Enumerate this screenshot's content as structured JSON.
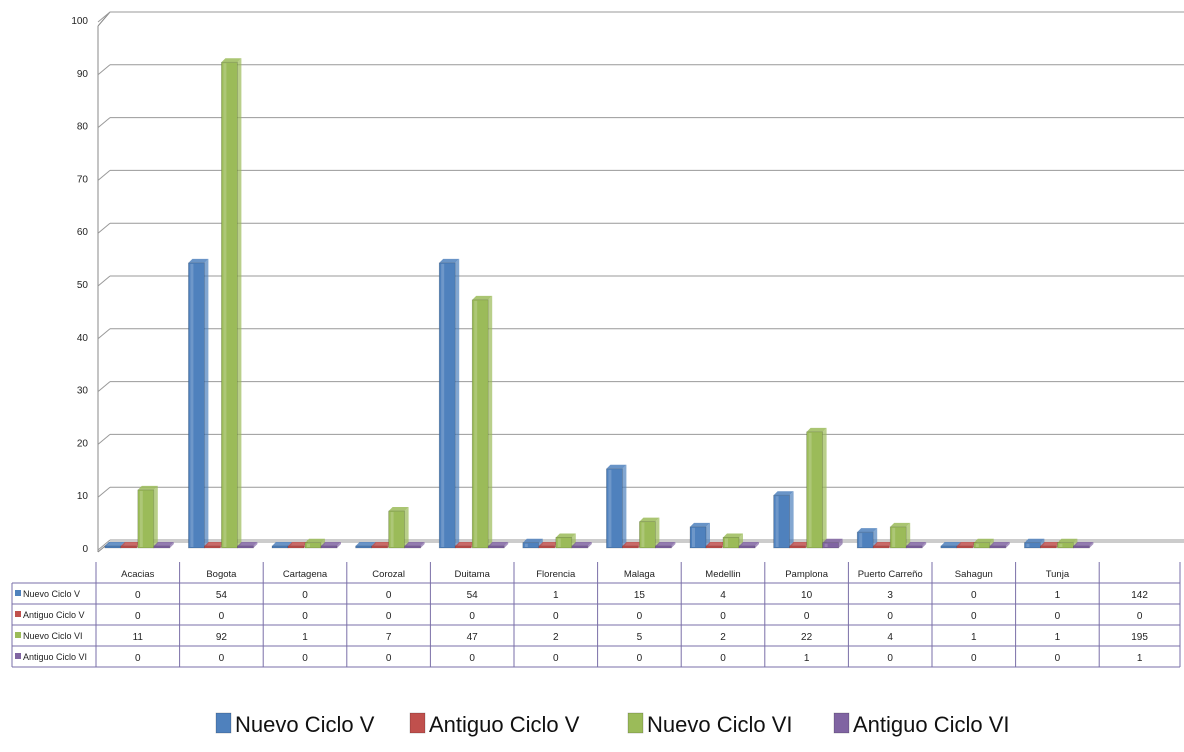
{
  "chart_data": {
    "type": "bar",
    "title": "",
    "xlabel": "",
    "ylabel": "",
    "ylim": [
      0,
      100
    ],
    "yticks": [
      0,
      10,
      20,
      30,
      40,
      50,
      60,
      70,
      80,
      90,
      100
    ],
    "grid": true,
    "legend_position": "bottom",
    "categories": [
      "Acacias",
      "Bogota",
      "Cartagena",
      "Corozal",
      "Duitama",
      "Florencia",
      "Malaga",
      "Medellin",
      "Pamplona",
      "Puerto Carreño",
      "Sahagun",
      "Tunja"
    ],
    "series": [
      {
        "name": "Nuevo Ciclo V",
        "legend_label": "Nuevo Ciclo V",
        "color": "#4F81BD",
        "values": [
          0,
          54,
          0,
          0,
          54,
          1,
          15,
          4,
          10,
          3,
          0,
          1
        ],
        "total": 142
      },
      {
        "name": "Antiguo  Ciclo V",
        "legend_label": "Antiguo  Ciclo V",
        "color": "#C0504D",
        "values": [
          0,
          0,
          0,
          0,
          0,
          0,
          0,
          0,
          0,
          0,
          0,
          0
        ],
        "total": 0
      },
      {
        "name": "Nuevo  Ciclo VI",
        "legend_label": "Nuevo  Ciclo VI",
        "color": "#9BBB59",
        "values": [
          11,
          92,
          1,
          7,
          47,
          2,
          5,
          2,
          22,
          4,
          1,
          1
        ],
        "total": 195
      },
      {
        "name": "Antiguo Ciclo VI",
        "legend_label": "Antiguo Ciclo VI",
        "color": "#8064A2",
        "values": [
          0,
          0,
          0,
          0,
          0,
          0,
          0,
          0,
          1,
          0,
          0,
          0
        ],
        "total": 1
      }
    ]
  }
}
